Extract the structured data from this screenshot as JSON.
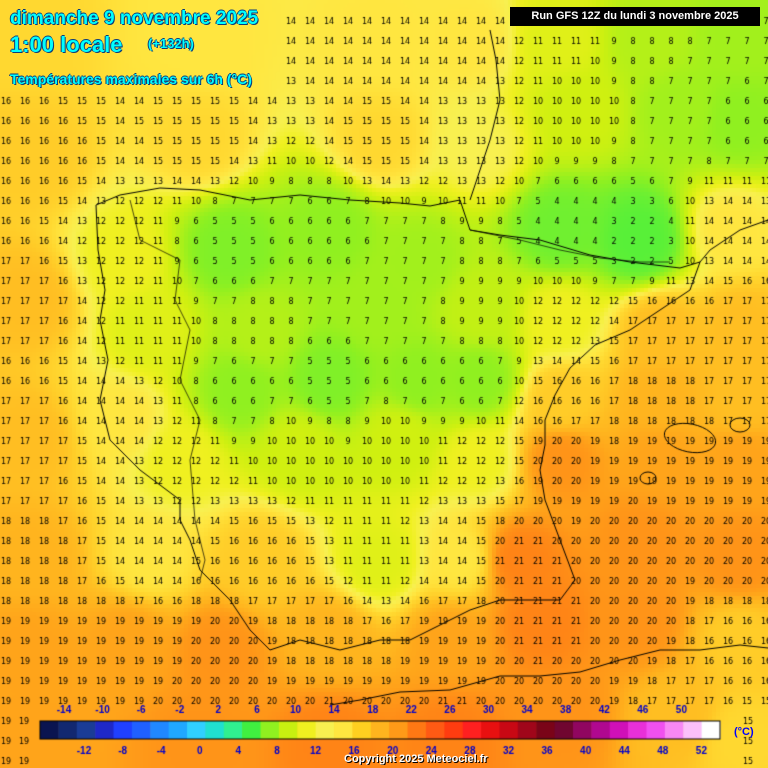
{
  "header": {
    "date": "dimanche 9 novembre 2025",
    "time": "1:00 locale",
    "lead": "(+132h)",
    "variable": "Températures maximales sur 6h (°C)"
  },
  "run_info": "Run GFS 12Z du lundi 3 novembre 2025",
  "copyright": "Copyright 2025 Meteociel.fr",
  "legend": {
    "unit": "(°C)",
    "top_labels": [
      "-14",
      "-10",
      "-6",
      "-2",
      "2",
      "6",
      "10",
      "14",
      "18",
      "22",
      "26",
      "30",
      "34",
      "38",
      "42",
      "46",
      "50"
    ],
    "bottom_labels": [
      "-12",
      "-8",
      "-4",
      "0",
      "4",
      "8",
      "12",
      "16",
      "20",
      "24",
      "28",
      "32",
      "36",
      "40",
      "44",
      "48",
      "52"
    ],
    "colors": [
      "#0a1450",
      "#122870",
      "#1a3c96",
      "#1e28c8",
      "#2040ff",
      "#2060ff",
      "#2088ff",
      "#20a8ff",
      "#30d0ff",
      "#20e0d0",
      "#30f090",
      "#40f040",
      "#90f020",
      "#c8f010",
      "#f0f020",
      "#f8f050",
      "#ffe640",
      "#ffd020",
      "#ffb41e",
      "#ff9a18",
      "#ff7814",
      "#ff5a14",
      "#ff3c10",
      "#ff2020",
      "#e81010",
      "#c80814",
      "#a0061a",
      "#7a0418",
      "#700630",
      "#900660",
      "#b00890",
      "#d010b8",
      "#e830d8",
      "#f050f0",
      "#f888f4",
      "#fcc0fa",
      "#ffffff"
    ]
  },
  "map": {
    "region": "Iberian Peninsula",
    "field_description": "maximum temperature over 6h grid values"
  }
}
